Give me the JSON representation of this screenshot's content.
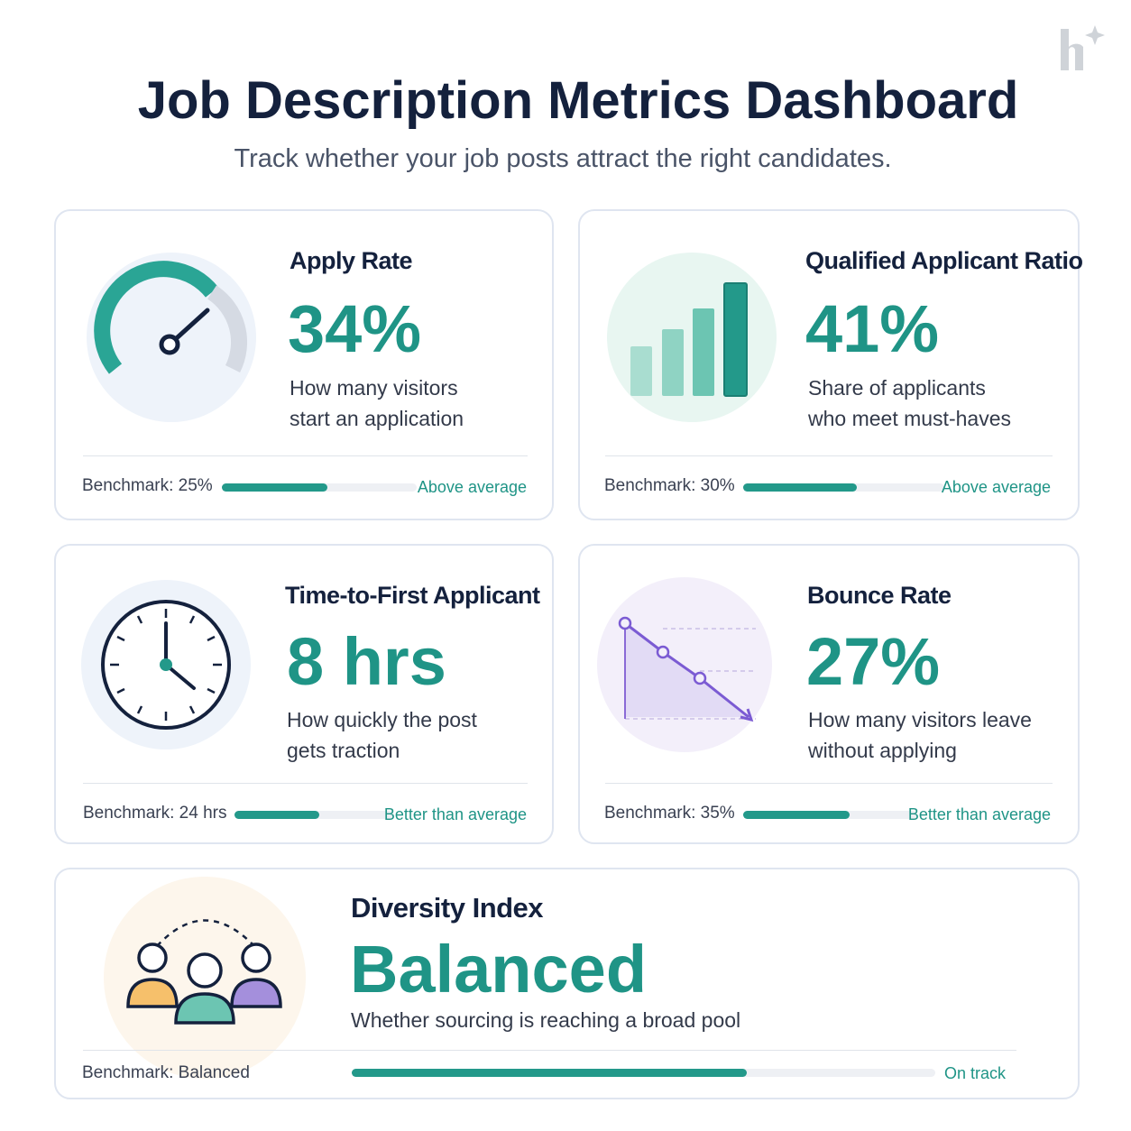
{
  "header": {
    "title": "Job Description Metrics Dashboard",
    "subtitle": "Track whether your job posts attract the right candidates."
  },
  "cards": [
    {
      "title": "Apply Rate",
      "value": "34%",
      "description": [
        "How many visitors",
        "start an application"
      ],
      "benchmark": "Benchmark: 25%",
      "status": "Above average"
    },
    {
      "title": "Qualified Applicant Ratio",
      "value": "41%",
      "description": [
        "Share of applicants",
        "who meet must-haves"
      ],
      "benchmark": "Benchmark: 30%",
      "status": "Above average"
    },
    {
      "title": "Time-to-First Applicant",
      "value": "8 hrs",
      "description": [
        "How quickly the post",
        "gets traction"
      ],
      "benchmark": "Benchmark: 24 hrs",
      "status": "Better than average"
    },
    {
      "title": "Bounce Rate",
      "value": "27%",
      "description": [
        "How many visitors leave",
        "without applying"
      ],
      "benchmark": "Benchmark: 35%",
      "status": "Better than average"
    },
    {
      "title": "Diversity Index",
      "value": "Balanced",
      "description": [
        "Whether sourcing is reaching a broad pool"
      ],
      "benchmark": "Benchmark: Balanced",
      "status": "On track"
    }
  ]
}
